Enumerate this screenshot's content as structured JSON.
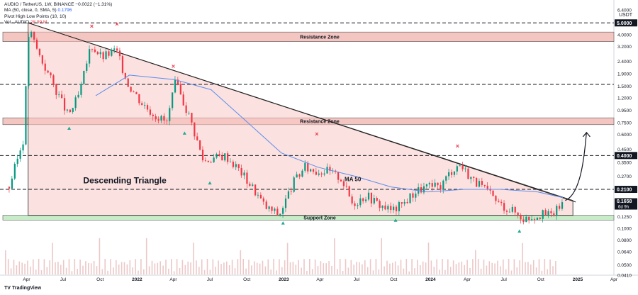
{
  "header": {
    "symbol_line": "AUDIO / TetherUS, 1W, BINANCE  −0.0022 (−1.31%)",
    "ma_line": "MA (50, close, 0, SMA, 5)",
    "ma_value": "0.1796",
    "pivot_line": "Pivot High Low Points (10, 10)",
    "vol_line": "Vol · AUDIO",
    "vol_value": "28.99 M",
    "currency": "USDT"
  },
  "branding": {
    "logo_text": "TradingView"
  },
  "colors": {
    "up": "#089981",
    "down": "#f23645",
    "ma": "#5b8def",
    "triangle_fill": "#f8c9c5",
    "zone_fill": "#f4c6c2",
    "support_fill": "#c8ecc8",
    "volume": "#e0a3a3",
    "price_tag": "#131722"
  },
  "chart_data": {
    "type": "candlestick",
    "title": "AUDIO / TetherUS, 1W, BINANCE",
    "x_axis": {
      "tick_labels": [
        "Apr",
        "Jul",
        "Oct",
        "2022",
        "Apr",
        "Jul",
        "Oct",
        "2023",
        "Apr",
        "Jul",
        "Oct",
        "2024",
        "Apr",
        "Jul",
        "Oct",
        "2025",
        "Apr"
      ],
      "range": [
        "2021-02",
        "2025-04"
      ]
    },
    "y_axis": {
      "scale": "log",
      "range": [
        0.041,
        6.4
      ],
      "tick_labels": [
        "6.4000",
        "5.0000",
        "4.0000",
        "3.2000",
        "2.4000",
        "1.9000",
        "1.5000",
        "1.2000",
        "0.9500",
        "0.7500",
        "0.6000",
        "0.4500",
        "0.4000",
        "0.3500",
        "0.2700",
        "0.2100",
        "0.1658",
        "0.1250",
        "0.1000",
        "0.0800",
        "0.0640",
        "0.0500",
        "0.0410"
      ],
      "boxed_labels": [
        "5.0000",
        "1.5500",
        "0.4000",
        "0.2100"
      ],
      "current_price": "0.1658",
      "countdown": "6d 9h"
    },
    "zones": [
      {
        "label": "Resistance Zone",
        "low": 3.5,
        "high": 4.2
      },
      {
        "label": "Resistance Zone",
        "low": 0.72,
        "high": 0.82
      },
      {
        "label": "Support Zone",
        "low": 0.117,
        "high": 0.128
      }
    ],
    "horizontal_levels": [
      5.0,
      1.55,
      0.4,
      0.21
    ],
    "pattern": {
      "label": "Descending Triangle",
      "apex_top": 5.0,
      "base": 0.128
    },
    "annotations": [
      "MA 50"
    ],
    "pivot_highs": [
      "2021-09-10",
      "2021-11-12",
      "2022-04-01",
      "2023-03-24",
      "2024-03-08"
    ],
    "pivot_lows": [
      "2021-07-16",
      "2022-04-29",
      "2022-07-01",
      "2022-12-30",
      "2023-10-06",
      "2024-08-09"
    ],
    "series": [
      {
        "name": "close",
        "points": [
          [
            "2021-02-15",
            0.22
          ],
          [
            "2021-03-22",
            0.55
          ],
          [
            "2021-04-05",
            4.5
          ],
          [
            "2021-05-03",
            2.6
          ],
          [
            "2021-06-07",
            1.5
          ],
          [
            "2021-07-12",
            0.85
          ],
          [
            "2021-08-09",
            1.3
          ],
          [
            "2021-09-06",
            3.3
          ],
          [
            "2021-10-04",
            2.6
          ],
          [
            "2021-11-08",
            3.0
          ],
          [
            "2021-12-06",
            1.6
          ],
          [
            "2022-01-10",
            1.1
          ],
          [
            "2022-02-07",
            0.9
          ],
          [
            "2022-03-14",
            0.75
          ],
          [
            "2022-04-04",
            1.6
          ],
          [
            "2022-05-09",
            0.85
          ],
          [
            "2022-06-13",
            0.36
          ],
          [
            "2022-07-04",
            0.38
          ],
          [
            "2022-08-08",
            0.4
          ],
          [
            "2022-09-12",
            0.3
          ],
          [
            "2022-10-17",
            0.21
          ],
          [
            "2022-11-14",
            0.15
          ],
          [
            "2022-12-19",
            0.13
          ],
          [
            "2023-01-23",
            0.24
          ],
          [
            "2023-02-20",
            0.32
          ],
          [
            "2023-03-20",
            0.3
          ],
          [
            "2023-04-17",
            0.3
          ],
          [
            "2023-05-22",
            0.26
          ],
          [
            "2023-06-19",
            0.16
          ],
          [
            "2023-07-24",
            0.19
          ],
          [
            "2023-08-21",
            0.16
          ],
          [
            "2023-09-25",
            0.14
          ],
          [
            "2023-10-23",
            0.16
          ],
          [
            "2023-11-20",
            0.2
          ],
          [
            "2023-12-18",
            0.22
          ],
          [
            "2024-01-22",
            0.22
          ],
          [
            "2024-02-19",
            0.3
          ],
          [
            "2024-03-11",
            0.34
          ],
          [
            "2024-04-15",
            0.25
          ],
          [
            "2024-05-20",
            0.2
          ],
          [
            "2024-06-17",
            0.16
          ],
          [
            "2024-07-22",
            0.14
          ],
          [
            "2024-08-19",
            0.12
          ],
          [
            "2024-09-23",
            0.13
          ],
          [
            "2024-10-28",
            0.13
          ],
          [
            "2024-11-25",
            0.1658
          ]
        ]
      },
      {
        "name": "MA 50",
        "points": [
          [
            "2021-09-20",
            1.25
          ],
          [
            "2021-12-13",
            1.85
          ],
          [
            "2022-04-04",
            1.7
          ],
          [
            "2022-07-04",
            1.4
          ],
          [
            "2022-10-03",
            0.75
          ],
          [
            "2022-12-26",
            0.42
          ],
          [
            "2023-03-27",
            0.32
          ],
          [
            "2023-06-26",
            0.27
          ],
          [
            "2023-09-25",
            0.22
          ],
          [
            "2023-12-25",
            0.2
          ],
          [
            "2024-03-25",
            0.21
          ],
          [
            "2024-06-24",
            0.21
          ],
          [
            "2024-09-23",
            0.2
          ],
          [
            "2024-11-25",
            0.1796
          ]
        ]
      }
    ]
  }
}
